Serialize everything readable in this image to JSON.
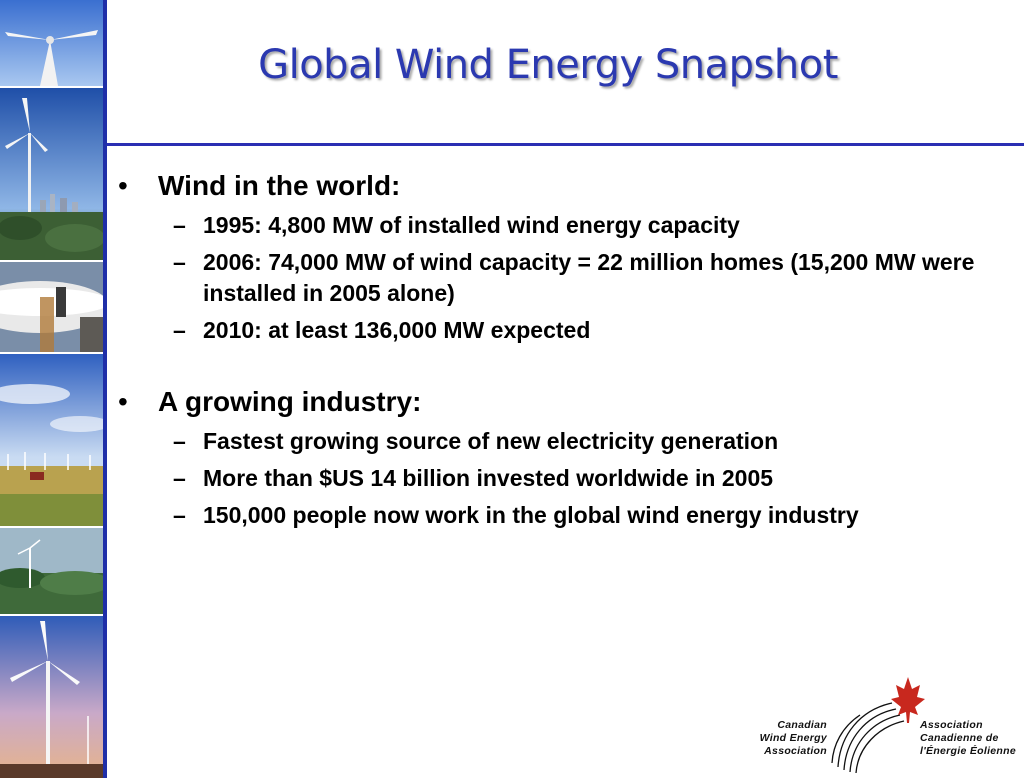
{
  "slide": {
    "title": "Global Wind Energy Snapshot"
  },
  "sections": [
    {
      "bullet": "•",
      "heading": "Wind in the world:",
      "items": [
        "1995: 4,800 MW of installed wind energy capacity",
        "2006: 74,000 MW of wind capacity = 22 million homes (15,200 MW were installed in 2005 alone)",
        "2010: at least 136,000 MW expected"
      ]
    },
    {
      "bullet": "•",
      "heading": "A growing industry:",
      "items": [
        "Fastest growing source of new electricity generation",
        "More than $US 14 billion invested worldwide in 2005",
        "150,000 people now work in the global wind energy industry"
      ]
    }
  ],
  "dash": "–",
  "logo": {
    "en_line1": "Canadian",
    "en_line2": "Wind Energy",
    "en_line3": "Association",
    "fr_line1": "Association",
    "fr_line2": "Canadienne de",
    "fr_line3": "l'Énergie Éolienne"
  },
  "colors": {
    "title": "#2b39b0",
    "rule": "#2a2fb3",
    "maple_leaf": "#c8281e"
  },
  "sidebar_photos": [
    "turbine-sky",
    "turbine-city",
    "blade-workers",
    "wind-farm-field",
    "forest-turbines",
    "sunset-turbines"
  ]
}
